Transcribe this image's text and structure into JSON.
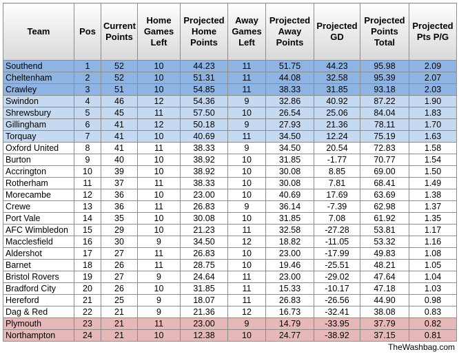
{
  "table": {
    "headers": [
      "Team",
      "Pos",
      "Current Points",
      "Home Games Left",
      "Projected Home Points",
      "Away Games Left",
      "Projected Away Points",
      "Projected GD",
      "Projected Points Total",
      "Projected Pts P/G"
    ],
    "rows": [
      [
        "Southend",
        "1",
        "52",
        "10",
        "44.23",
        "11",
        "51.75",
        "44.23",
        "95.98",
        "2.09"
      ],
      [
        "Cheltenham",
        "2",
        "52",
        "10",
        "51.31",
        "11",
        "44.08",
        "32.58",
        "95.39",
        "2.07"
      ],
      [
        "Crawley",
        "3",
        "51",
        "10",
        "54.85",
        "11",
        "38.33",
        "31.85",
        "93.18",
        "2.03"
      ],
      [
        "Swindon",
        "4",
        "46",
        "12",
        "54.36",
        "9",
        "32.86",
        "40.92",
        "87.22",
        "1.90"
      ],
      [
        "Shrewsbury",
        "5",
        "45",
        "11",
        "57.50",
        "10",
        "26.54",
        "25.06",
        "84.04",
        "1.83"
      ],
      [
        "Gillingham",
        "6",
        "41",
        "12",
        "50.18",
        "9",
        "27.93",
        "21.36",
        "78.11",
        "1.70"
      ],
      [
        "Torquay",
        "7",
        "41",
        "10",
        "40.69",
        "11",
        "34.50",
        "12.24",
        "75.19",
        "1.63"
      ],
      [
        "Oxford United",
        "8",
        "41",
        "11",
        "38.33",
        "9",
        "34.50",
        "20.54",
        "72.83",
        "1.58"
      ],
      [
        "Burton",
        "9",
        "40",
        "10",
        "38.92",
        "10",
        "31.85",
        "-1.77",
        "70.77",
        "1.54"
      ],
      [
        "Accrington",
        "10",
        "39",
        "10",
        "38.92",
        "10",
        "30.08",
        "8.85",
        "69.00",
        "1.50"
      ],
      [
        "Rotherham",
        "11",
        "37",
        "11",
        "38.33",
        "10",
        "30.08",
        "7.81",
        "68.41",
        "1.49"
      ],
      [
        "Morecambe",
        "12",
        "36",
        "10",
        "23.00",
        "10",
        "40.69",
        "17.69",
        "63.69",
        "1.38"
      ],
      [
        "Crewe",
        "13",
        "36",
        "11",
        "26.83",
        "9",
        "36.14",
        "-7.39",
        "62.98",
        "1.37"
      ],
      [
        "Port Vale",
        "14",
        "35",
        "10",
        "30.08",
        "10",
        "31.85",
        "7.08",
        "61.92",
        "1.35"
      ],
      [
        "AFC Wimbledon",
        "15",
        "29",
        "10",
        "21.23",
        "11",
        "32.58",
        "-27.28",
        "53.81",
        "1.17"
      ],
      [
        "Macclesfield",
        "16",
        "30",
        "9",
        "34.50",
        "12",
        "18.82",
        "-11.05",
        "53.32",
        "1.16"
      ],
      [
        "Aldershot",
        "17",
        "27",
        "11",
        "26.83",
        "10",
        "23.00",
        "-17.99",
        "49.83",
        "1.08"
      ],
      [
        "Barnet",
        "18",
        "26",
        "11",
        "28.75",
        "10",
        "19.46",
        "-25.51",
        "48.21",
        "1.05"
      ],
      [
        "Bristol Rovers",
        "19",
        "27",
        "9",
        "24.64",
        "11",
        "23.00",
        "-29.02",
        "47.64",
        "1.04"
      ],
      [
        "Bradford City",
        "20",
        "26",
        "10",
        "31.85",
        "11",
        "15.33",
        "-10.17",
        "47.18",
        "1.03"
      ],
      [
        "Hereford",
        "21",
        "25",
        "9",
        "18.07",
        "11",
        "26.83",
        "-26.56",
        "44.90",
        "0.98"
      ],
      [
        "Dag & Red",
        "22",
        "21",
        "9",
        "21.36",
        "12",
        "16.73",
        "-32.41",
        "38.08",
        "0.83"
      ],
      [
        "Plymouth",
        "23",
        "21",
        "11",
        "23.00",
        "9",
        "14.79",
        "-33.95",
        "37.79",
        "0.82"
      ],
      [
        "Northampton",
        "24",
        "21",
        "10",
        "12.38",
        "10",
        "24.77",
        "-38.92",
        "37.15",
        "0.81"
      ]
    ]
  },
  "footer": "TheWashbag.com"
}
